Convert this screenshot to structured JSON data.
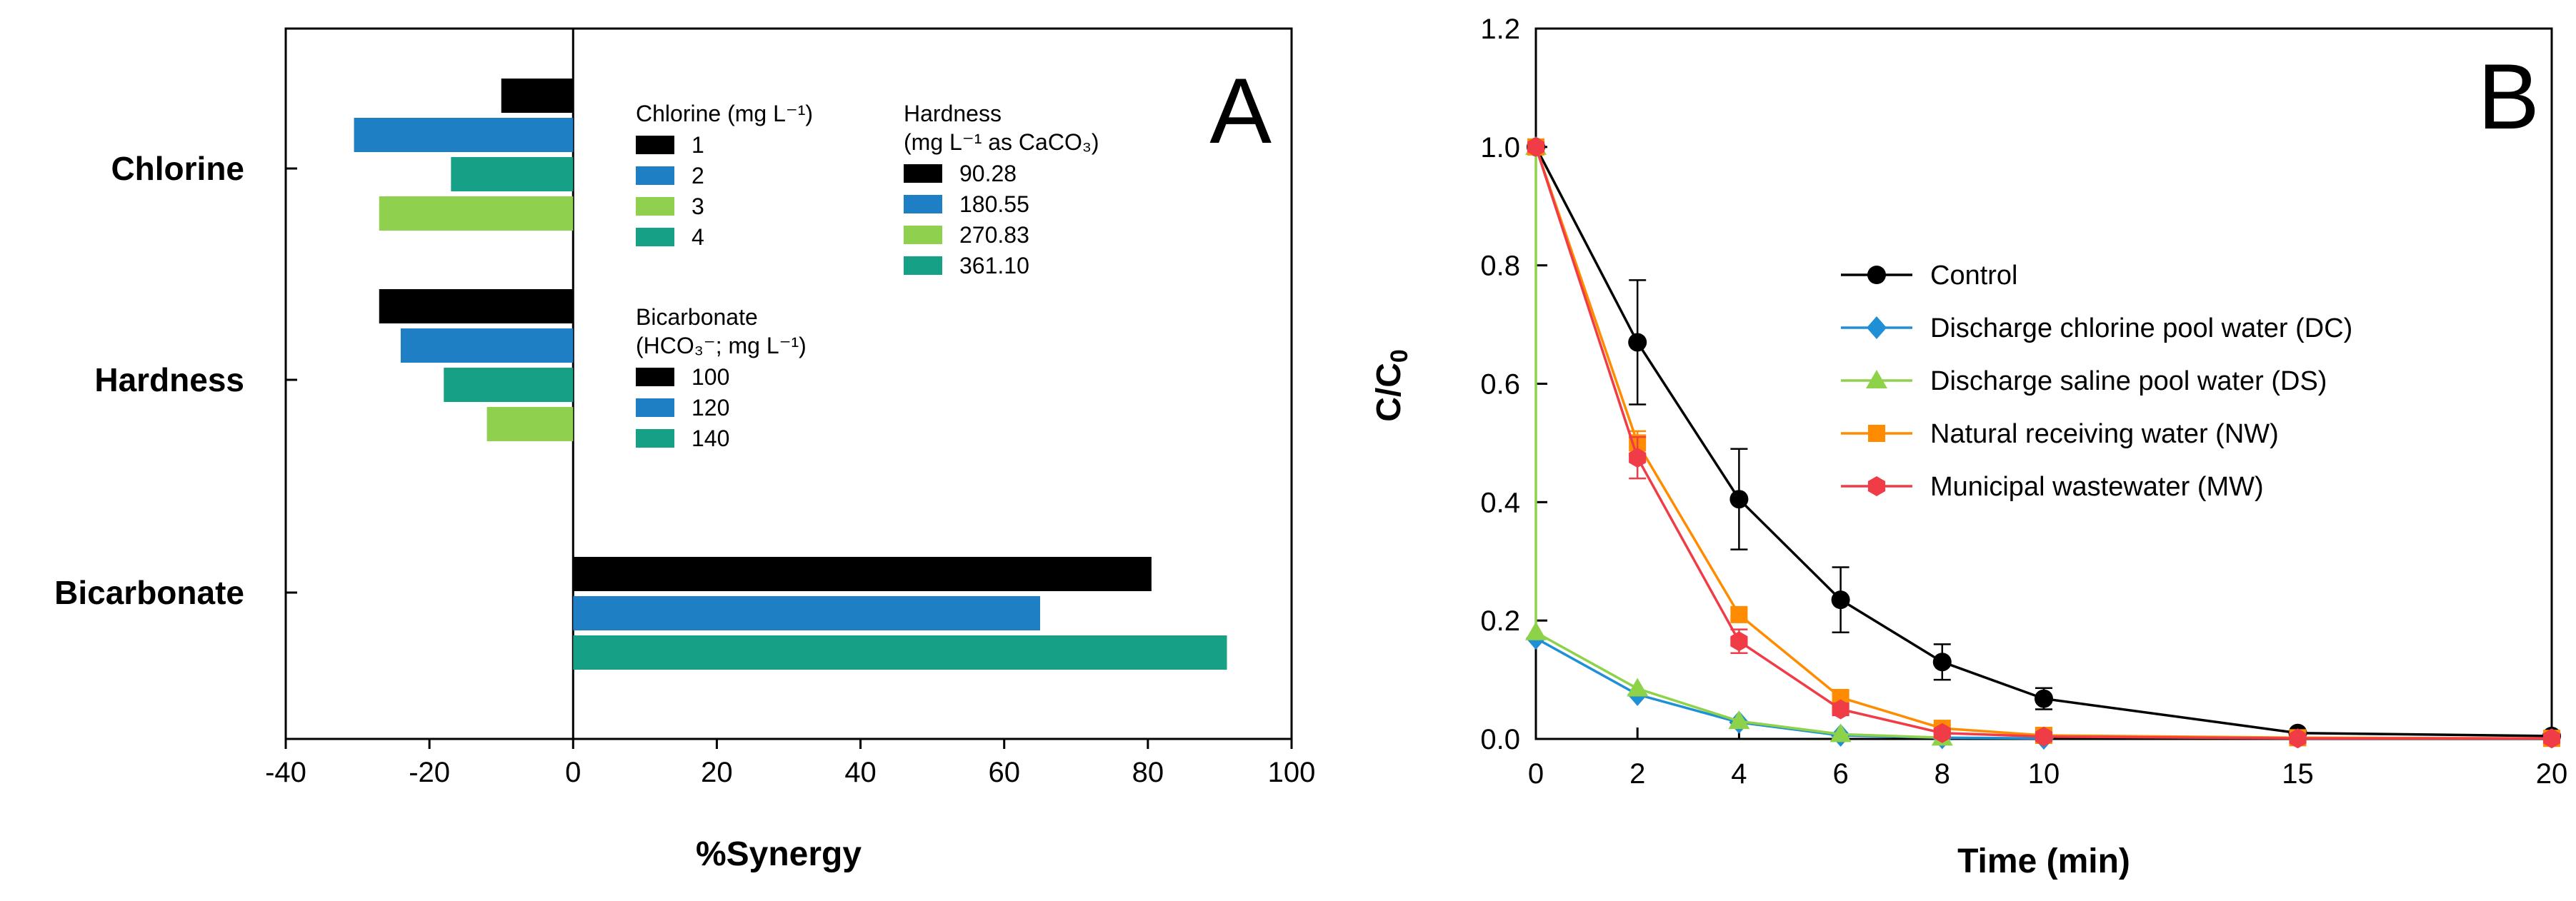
{
  "chart_data": [
    {
      "panel": "A",
      "type": "bar",
      "orientation": "horizontal",
      "xlabel": "%Synergy",
      "xlim": [
        -40,
        100
      ],
      "xticks": [
        -40,
        -20,
        0,
        20,
        40,
        60,
        80,
        100
      ],
      "xtick_labels": [
        "-40",
        "-20",
        "0",
        "20",
        "40",
        "60",
        "80",
        "100"
      ],
      "categories": [
        "Chlorine",
        "Hardness",
        "Bicarbonate"
      ],
      "groups": [
        {
          "category": "Chlorine",
          "bars": [
            {
              "label": "1",
              "value": -10,
              "color": "#000000"
            },
            {
              "label": "2",
              "value": -30.5,
              "color": "#1f7fc4"
            },
            {
              "label": "4",
              "value": -17,
              "color": "#16a085"
            },
            {
              "label": "3",
              "value": -27,
              "color": "#8fd14f"
            }
          ]
        },
        {
          "category": "Hardness",
          "bars": [
            {
              "label": "90.28",
              "value": -27,
              "color": "#000000"
            },
            {
              "label": "180.55",
              "value": -24,
              "color": "#1f7fc4"
            },
            {
              "label": "361.10",
              "value": -18,
              "color": "#16a085"
            },
            {
              "label": "270.83",
              "value": -12,
              "color": "#8fd14f"
            }
          ]
        },
        {
          "category": "Bicarbonate",
          "bars": [
            {
              "label": "100",
              "value": 80.5,
              "color": "#000000"
            },
            {
              "label": "120",
              "value": 65,
              "color": "#1f7fc4"
            },
            {
              "label": "140",
              "value": 91,
              "color": "#16a085"
            }
          ]
        }
      ],
      "legends": [
        {
          "title_lines": [
            "Chlorine (mg L⁻¹)"
          ],
          "entries": [
            {
              "label": "1",
              "color": "#000000"
            },
            {
              "label": "2",
              "color": "#1f7fc4"
            },
            {
              "label": "3",
              "color": "#8fd14f"
            },
            {
              "label": "4",
              "color": "#16a085"
            }
          ]
        },
        {
          "title_lines": [
            "Hardness",
            "(mg L⁻¹ as CaCO₃)"
          ],
          "entries": [
            {
              "label": "90.28",
              "color": "#000000"
            },
            {
              "label": "180.55",
              "color": "#1f7fc4"
            },
            {
              "label": "270.83",
              "color": "#8fd14f"
            },
            {
              "label": "361.10",
              "color": "#16a085"
            }
          ]
        },
        {
          "title_lines": [
            "Bicarbonate",
            "(HCO₃⁻; mg L⁻¹)"
          ],
          "entries": [
            {
              "label": "100",
              "color": "#000000"
            },
            {
              "label": "120",
              "color": "#1f7fc4"
            },
            {
              "label": "140",
              "color": "#16a085"
            }
          ]
        }
      ]
    },
    {
      "panel": "B",
      "type": "line",
      "xlabel": "Time (min)",
      "ylabel": "C/C₀",
      "xlim": [
        0,
        20
      ],
      "ylim": [
        0,
        1.2
      ],
      "xticks": [
        0,
        2,
        4,
        6,
        8,
        10,
        15,
        20
      ],
      "xtick_labels": [
        "0",
        "2",
        "4",
        "6",
        "8",
        "10",
        "15",
        "20"
      ],
      "yticks": [
        0,
        0.2,
        0.4,
        0.6,
        0.8,
        1.0,
        1.2
      ],
      "ytick_labels": [
        "0.0",
        "0.2",
        "0.4",
        "0.6",
        "0.8",
        "1.0",
        "1.2"
      ],
      "series": [
        {
          "name": "Control",
          "color": "#000000",
          "marker": "circle",
          "x": [
            0,
            2,
            4,
            6,
            8,
            10,
            15,
            20
          ],
          "y": [
            1.0,
            0.67,
            0.405,
            0.235,
            0.13,
            0.068,
            0.01,
            0.005
          ],
          "err": [
            0,
            0.105,
            0.085,
            0.055,
            0.03,
            0.018,
            0,
            0
          ]
        },
        {
          "name": "Discharge chlorine pool water (DC)",
          "color": "#1f8fd6",
          "marker": "diamond",
          "x": [
            0,
            2,
            4,
            6,
            8,
            10
          ],
          "y": [
            0.17,
            0.075,
            0.028,
            0.006,
            0.002,
            0.001
          ],
          "err": [
            0,
            0,
            0,
            0,
            0,
            0
          ]
        },
        {
          "name": "Discharge saline pool water (DS)",
          "color": "#8ed24a",
          "marker": "triangle",
          "x": [
            0,
            0,
            2,
            4,
            6,
            8
          ],
          "y": [
            1.0,
            0.18,
            0.085,
            0.03,
            0.008,
            0.002
          ],
          "err": [
            0,
            0,
            0,
            0,
            0,
            0
          ]
        },
        {
          "name": "Natural receiving water (NW)",
          "color": "#ff8c00",
          "marker": "square",
          "x": [
            0,
            2,
            4,
            6,
            8,
            10,
            15,
            20
          ],
          "y": [
            1.0,
            0.5,
            0.21,
            0.07,
            0.018,
            0.006,
            0.002,
            0.001
          ],
          "err": [
            0,
            0.02,
            0.01,
            0.01,
            0.005,
            0,
            0,
            0
          ]
        },
        {
          "name": "Municipal wastewater (MW)",
          "color": "#f03c46",
          "marker": "hexagon",
          "x": [
            0,
            2,
            4,
            6,
            8,
            10,
            15,
            20
          ],
          "y": [
            1.0,
            0.475,
            0.165,
            0.05,
            0.01,
            0.004,
            0.001,
            0.001
          ],
          "err": [
            0,
            0.035,
            0.02,
            0.01,
            0,
            0,
            0,
            0
          ]
        }
      ]
    }
  ]
}
